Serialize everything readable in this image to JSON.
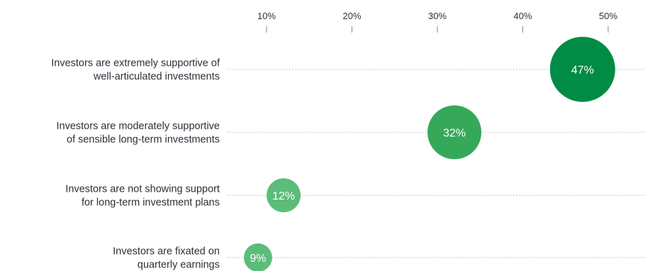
{
  "chart_data": {
    "type": "scatter",
    "x_ticks": [
      "10%",
      "20%",
      "30%",
      "40%",
      "50%"
    ],
    "xlim": [
      0,
      52
    ],
    "grid": "dotted row guide lines",
    "rows": [
      {
        "label_lines": [
          "Investors are extremely supportive of",
          "well-articulated investments"
        ],
        "value": 47,
        "data_label": "47%",
        "color": "#008c45"
      },
      {
        "label_lines": [
          "Investors are moderately supportive",
          "of sensible long-term investments"
        ],
        "value": 32,
        "data_label": "32%",
        "color": "#36a85a"
      },
      {
        "label_lines": [
          "Investors are not showing support",
          "for long-term investment plans"
        ],
        "value": 12,
        "data_label": "12%",
        "color": "#5cbd7a"
      },
      {
        "label_lines": [
          "Investors are fixated on",
          "quarterly earnings"
        ],
        "value": 9,
        "data_label": "9%",
        "color": "#5cbd7a"
      }
    ]
  }
}
